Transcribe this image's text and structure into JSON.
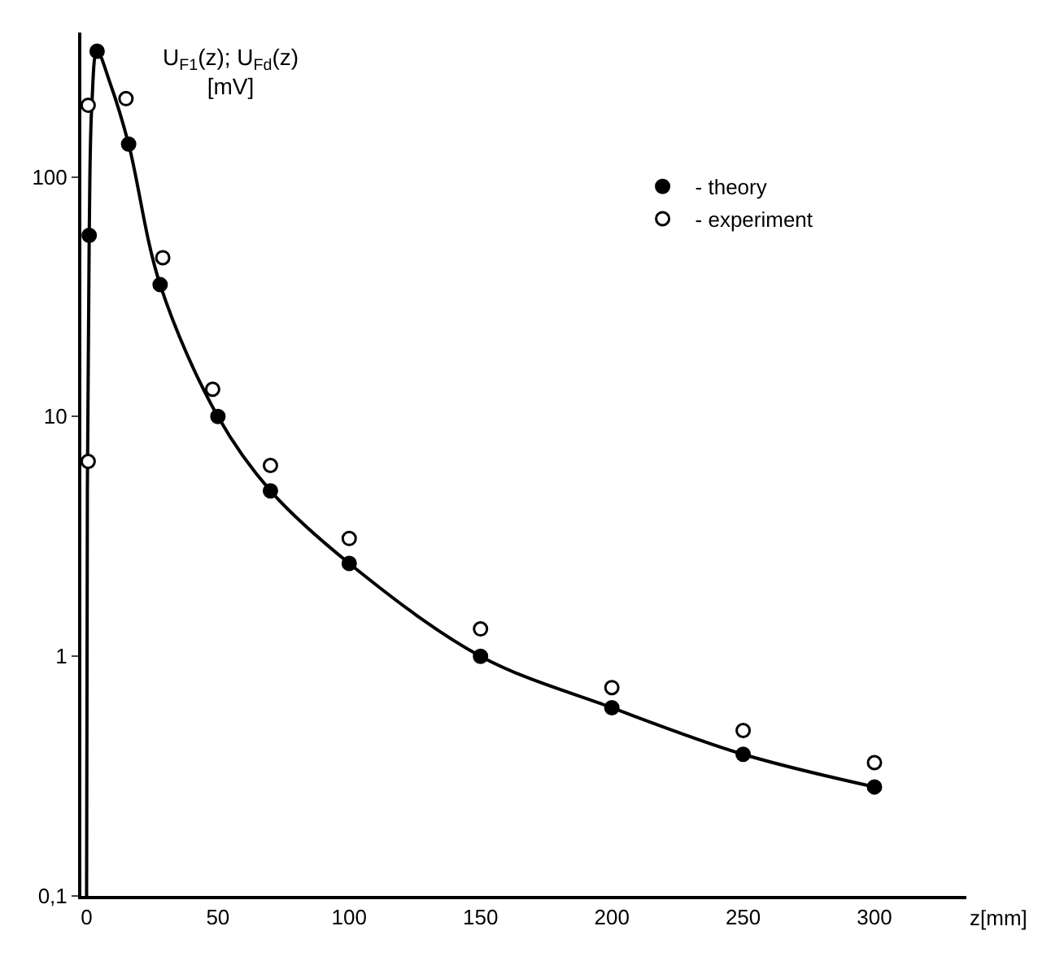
{
  "chart_data": {
    "type": "scatter",
    "xlabel": "z[mm]",
    "ylabel": "U$_{F1}$(z); U$_{Fd}$(z)\n[mV]",
    "xlim": [
      -2,
      335
    ],
    "xticks": [
      0,
      50,
      100,
      150,
      200,
      250,
      300
    ],
    "ylim": [
      0.1,
      400
    ],
    "yticks": [
      {
        "value": 0.1,
        "label": "0,1"
      },
      1,
      10,
      100
    ],
    "log": "y",
    "legend": "top right",
    "marker": "circle",
    "series": [
      {
        "type": "line",
        "color": "#000000",
        "line_style": "solid",
        "marker": "none",
        "x": [
          0,
          0.3,
          1,
          2,
          4,
          9,
          16,
          28,
          50,
          70,
          100,
          150,
          200,
          250,
          300
        ],
        "values": [
          0.1,
          5,
          57,
          200,
          334,
          245,
          137,
          35.5,
          10,
          4.9,
          2.44,
          1.0,
          0.61,
          0.39,
          0.285
        ]
      },
      {
        "name": "- theory",
        "color": "#000000",
        "x": [
          1,
          4,
          16,
          28,
          50,
          70,
          100,
          150,
          200,
          250,
          300
        ],
        "values": [
          57,
          334,
          137,
          35.5,
          10,
          4.9,
          2.44,
          1.0,
          0.61,
          0.39,
          0.285
        ]
      },
      {
        "name": "- experiment",
        "color": "#ffffff",
        "x": [
          0.6,
          0.6,
          15,
          29,
          48,
          70,
          100,
          150,
          200,
          250,
          300
        ],
        "values": [
          199,
          6.5,
          212,
          46,
          13,
          6.25,
          3.1,
          1.3,
          0.74,
          0.49,
          0.36
        ]
      }
    ]
  }
}
